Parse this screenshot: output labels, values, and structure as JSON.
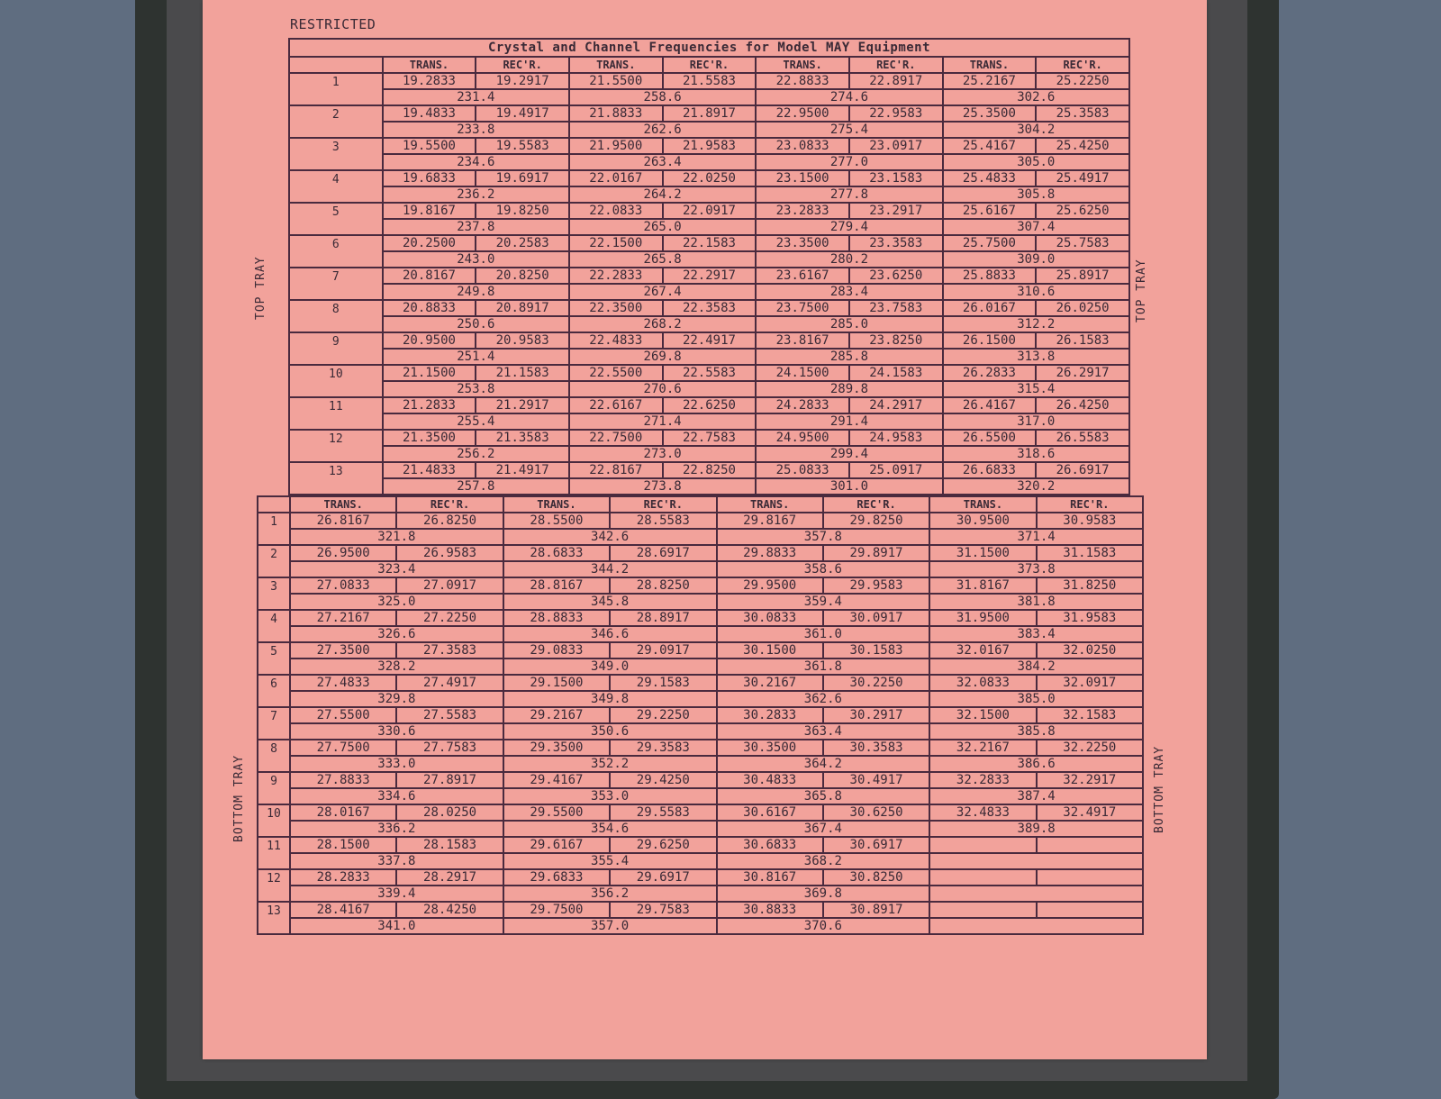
{
  "document": {
    "classification": "RESTRICTED",
    "title": "Crystal and Channel Frequencies for Model MAY Equipment",
    "top_label": "TOP TRAY",
    "bottom_label": "BOTTOM TRAY",
    "col_trans": "TRANS.",
    "col_rec": "REC'R.",
    "top_tray": [
      [
        [
          "19.2833",
          "19.2917",
          "231.4"
        ],
        [
          "21.5500",
          "21.5583",
          "258.6"
        ],
        [
          "22.8833",
          "22.8917",
          "274.6"
        ],
        [
          "25.2167",
          "25.2250",
          "302.6"
        ]
      ],
      [
        [
          "19.4833",
          "19.4917",
          "233.8"
        ],
        [
          "21.8833",
          "21.8917",
          "262.6"
        ],
        [
          "22.9500",
          "22.9583",
          "275.4"
        ],
        [
          "25.3500",
          "25.3583",
          "304.2"
        ]
      ],
      [
        [
          "19.5500",
          "19.5583",
          "234.6"
        ],
        [
          "21.9500",
          "21.9583",
          "263.4"
        ],
        [
          "23.0833",
          "23.0917",
          "277.0"
        ],
        [
          "25.4167",
          "25.4250",
          "305.0"
        ]
      ],
      [
        [
          "19.6833",
          "19.6917",
          "236.2"
        ],
        [
          "22.0167",
          "22.0250",
          "264.2"
        ],
        [
          "23.1500",
          "23.1583",
          "277.8"
        ],
        [
          "25.4833",
          "25.4917",
          "305.8"
        ]
      ],
      [
        [
          "19.8167",
          "19.8250",
          "237.8"
        ],
        [
          "22.0833",
          "22.0917",
          "265.0"
        ],
        [
          "23.2833",
          "23.2917",
          "279.4"
        ],
        [
          "25.6167",
          "25.6250",
          "307.4"
        ]
      ],
      [
        [
          "20.2500",
          "20.2583",
          "243.0"
        ],
        [
          "22.1500",
          "22.1583",
          "265.8"
        ],
        [
          "23.3500",
          "23.3583",
          "280.2"
        ],
        [
          "25.7500",
          "25.7583",
          "309.0"
        ]
      ],
      [
        [
          "20.8167",
          "20.8250",
          "249.8"
        ],
        [
          "22.2833",
          "22.2917",
          "267.4"
        ],
        [
          "23.6167",
          "23.6250",
          "283.4"
        ],
        [
          "25.8833",
          "25.8917",
          "310.6"
        ]
      ],
      [
        [
          "20.8833",
          "20.8917",
          "250.6"
        ],
        [
          "22.3500",
          "22.3583",
          "268.2"
        ],
        [
          "23.7500",
          "23.7583",
          "285.0"
        ],
        [
          "26.0167",
          "26.0250",
          "312.2"
        ]
      ],
      [
        [
          "20.9500",
          "20.9583",
          "251.4"
        ],
        [
          "22.4833",
          "22.4917",
          "269.8"
        ],
        [
          "23.8167",
          "23.8250",
          "285.8"
        ],
        [
          "26.1500",
          "26.1583",
          "313.8"
        ]
      ],
      [
        [
          "21.1500",
          "21.1583",
          "253.8"
        ],
        [
          "22.5500",
          "22.5583",
          "270.6"
        ],
        [
          "24.1500",
          "24.1583",
          "289.8"
        ],
        [
          "26.2833",
          "26.2917",
          "315.4"
        ]
      ],
      [
        [
          "21.2833",
          "21.2917",
          "255.4"
        ],
        [
          "22.6167",
          "22.6250",
          "271.4"
        ],
        [
          "24.2833",
          "24.2917",
          "291.4"
        ],
        [
          "26.4167",
          "26.4250",
          "317.0"
        ]
      ],
      [
        [
          "21.3500",
          "21.3583",
          "256.2"
        ],
        [
          "22.7500",
          "22.7583",
          "273.0"
        ],
        [
          "24.9500",
          "24.9583",
          "299.4"
        ],
        [
          "26.5500",
          "26.5583",
          "318.6"
        ]
      ],
      [
        [
          "21.4833",
          "21.4917",
          "257.8"
        ],
        [
          "22.8167",
          "22.8250",
          "273.8"
        ],
        [
          "25.0833",
          "25.0917",
          "301.0"
        ],
        [
          "26.6833",
          "26.6917",
          "320.2"
        ]
      ]
    ],
    "bottom_tray": [
      [
        [
          "26.8167",
          "26.8250",
          "321.8"
        ],
        [
          "28.5500",
          "28.5583",
          "342.6"
        ],
        [
          "29.8167",
          "29.8250",
          "357.8"
        ],
        [
          "30.9500",
          "30.9583",
          "371.4"
        ]
      ],
      [
        [
          "26.9500",
          "26.9583",
          "323.4"
        ],
        [
          "28.6833",
          "28.6917",
          "344.2"
        ],
        [
          "29.8833",
          "29.8917",
          "358.6"
        ],
        [
          "31.1500",
          "31.1583",
          "373.8"
        ]
      ],
      [
        [
          "27.0833",
          "27.0917",
          "325.0"
        ],
        [
          "28.8167",
          "28.8250",
          "345.8"
        ],
        [
          "29.9500",
          "29.9583",
          "359.4"
        ],
        [
          "31.8167",
          "31.8250",
          "381.8"
        ]
      ],
      [
        [
          "27.2167",
          "27.2250",
          "326.6"
        ],
        [
          "28.8833",
          "28.8917",
          "346.6"
        ],
        [
          "30.0833",
          "30.0917",
          "361.0"
        ],
        [
          "31.9500",
          "31.9583",
          "383.4"
        ]
      ],
      [
        [
          "27.3500",
          "27.3583",
          "328.2"
        ],
        [
          "29.0833",
          "29.0917",
          "349.0"
        ],
        [
          "30.1500",
          "30.1583",
          "361.8"
        ],
        [
          "32.0167",
          "32.0250",
          "384.2"
        ]
      ],
      [
        [
          "27.4833",
          "27.4917",
          "329.8"
        ],
        [
          "29.1500",
          "29.1583",
          "349.8"
        ],
        [
          "30.2167",
          "30.2250",
          "362.6"
        ],
        [
          "32.0833",
          "32.0917",
          "385.0"
        ]
      ],
      [
        [
          "27.5500",
          "27.5583",
          "330.6"
        ],
        [
          "29.2167",
          "29.2250",
          "350.6"
        ],
        [
          "30.2833",
          "30.2917",
          "363.4"
        ],
        [
          "32.1500",
          "32.1583",
          "385.8"
        ]
      ],
      [
        [
          "27.7500",
          "27.7583",
          "333.0"
        ],
        [
          "29.3500",
          "29.3583",
          "352.2"
        ],
        [
          "30.3500",
          "30.3583",
          "364.2"
        ],
        [
          "32.2167",
          "32.2250",
          "386.6"
        ]
      ],
      [
        [
          "27.8833",
          "27.8917",
          "334.6"
        ],
        [
          "29.4167",
          "29.4250",
          "353.0"
        ],
        [
          "30.4833",
          "30.4917",
          "365.8"
        ],
        [
          "32.2833",
          "32.2917",
          "387.4"
        ]
      ],
      [
        [
          "28.0167",
          "28.0250",
          "336.2"
        ],
        [
          "29.5500",
          "29.5583",
          "354.6"
        ],
        [
          "30.6167",
          "30.6250",
          "367.4"
        ],
        [
          "32.4833",
          "32.4917",
          "389.8"
        ]
      ],
      [
        [
          "28.1500",
          "28.1583",
          "337.8"
        ],
        [
          "29.6167",
          "29.6250",
          "355.4"
        ],
        [
          "30.6833",
          "30.6917",
          "368.2"
        ],
        [
          "",
          "",
          ""
        ]
      ],
      [
        [
          "28.2833",
          "28.2917",
          "339.4"
        ],
        [
          "29.6833",
          "29.6917",
          "356.2"
        ],
        [
          "30.8167",
          "30.8250",
          "369.8"
        ],
        [
          "",
          "",
          ""
        ]
      ],
      [
        [
          "28.4167",
          "28.4250",
          "341.0"
        ],
        [
          "29.7500",
          "29.7583",
          "357.0"
        ],
        [
          "30.8833",
          "30.8917",
          "370.6"
        ],
        [
          "",
          "",
          ""
        ]
      ]
    ]
  }
}
